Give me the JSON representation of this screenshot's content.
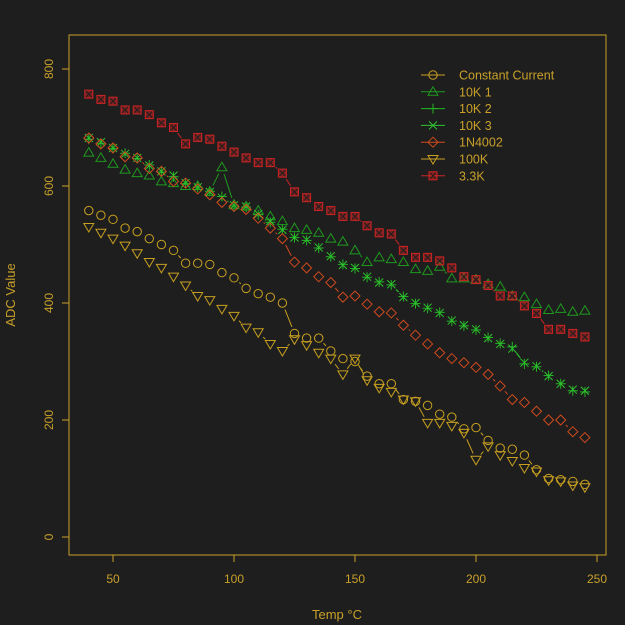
{
  "chart_data": {
    "type": "scatter",
    "xlabel": "Temp °C",
    "ylabel": "ADC Value",
    "xlim": [
      32,
      253
    ],
    "ylim": [
      -30,
      860
    ],
    "xticks": [
      50,
      100,
      150,
      200,
      250
    ],
    "yticks": [
      0,
      200,
      400,
      600,
      800
    ],
    "grid": false,
    "legend_position": "top-right",
    "colors": {
      "background": "#1e1e1e",
      "axis": "#c8a02a"
    },
    "x": [
      40,
      45,
      50,
      55,
      60,
      65,
      70,
      75,
      80,
      85,
      90,
      95,
      100,
      105,
      110,
      115,
      120,
      125,
      130,
      135,
      140,
      145,
      150,
      155,
      160,
      165,
      170,
      175,
      180,
      185,
      190,
      195,
      200,
      205,
      210,
      215,
      220,
      225,
      230,
      235,
      240,
      245
    ],
    "series": [
      {
        "name": "Constant Current",
        "marker": "circle",
        "color": "#c8a020",
        "values": [
          558,
          550,
          543,
          528,
          522,
          510,
          500,
          490,
          468,
          468,
          466,
          452,
          443,
          425,
          416,
          410,
          400,
          348,
          340,
          340,
          318,
          305,
          300,
          275,
          262,
          262,
          235,
          232,
          225,
          210,
          205,
          185,
          187,
          165,
          152,
          150,
          140,
          115,
          100,
          98,
          95,
          90
        ]
      },
      {
        "name": "10K 1",
        "marker": "triangle-up",
        "color": "#1f9a1f",
        "values": [
          657,
          648,
          638,
          628,
          622,
          618,
          608,
          605,
          600,
          600,
          590,
          632,
          568,
          565,
          558,
          548,
          540,
          528,
          525,
          520,
          510,
          505,
          490,
          470,
          478,
          475,
          470,
          458,
          455,
          462,
          442,
          442,
          440,
          432,
          428,
          412,
          410,
          398,
          388,
          390,
          385,
          387
        ]
      },
      {
        "name": "10K 2",
        "marker": "plus",
        "color": "#22b422",
        "values": [
          680,
          673,
          664,
          656,
          647,
          636,
          624,
          616,
          604,
          598,
          591,
          582,
          566,
          564,
          551,
          538,
          526,
          512,
          507,
          494,
          479,
          466,
          459,
          444,
          436,
          431,
          411,
          399,
          391,
          384,
          369,
          361,
          354,
          341,
          331,
          325,
          296,
          291,
          276,
          262,
          250,
          248
        ]
      },
      {
        "name": "10K 3",
        "marker": "cross",
        "color": "#2ec42e",
        "values": [
          682,
          675,
          665,
          655,
          648,
          635,
          625,
          618,
          605,
          598,
          590,
          580,
          567,
          565,
          552,
          540,
          525,
          512,
          508,
          495,
          480,
          465,
          460,
          445,
          435,
          432,
          410,
          400,
          392,
          383,
          370,
          362,
          355,
          340,
          330,
          322,
          298,
          292,
          275,
          262,
          252,
          250
        ]
      },
      {
        "name": "1N4002",
        "marker": "diamond",
        "color": "#d04a1e",
        "values": [
          682,
          672,
          665,
          650,
          648,
          630,
          625,
          608,
          605,
          595,
          585,
          572,
          565,
          560,
          545,
          528,
          510,
          470,
          460,
          445,
          435,
          410,
          412,
          398,
          385,
          383,
          362,
          345,
          330,
          315,
          305,
          298,
          290,
          278,
          258,
          235,
          230,
          215,
          200,
          200,
          180,
          170
        ]
      },
      {
        "name": "100K",
        "marker": "triangle-down",
        "color": "#c8a020",
        "values": [
          530,
          520,
          510,
          498,
          485,
          470,
          460,
          445,
          430,
          412,
          405,
          390,
          378,
          358,
          350,
          330,
          318,
          338,
          328,
          315,
          305,
          278,
          305,
          268,
          255,
          248,
          235,
          232,
          195,
          195,
          190,
          178,
          132,
          155,
          140,
          130,
          118,
          112,
          97,
          95,
          88,
          85
        ]
      },
      {
        "name": "3.3K",
        "marker": "square-x",
        "color": "#cc2424",
        "values": [
          757,
          748,
          745,
          730,
          730,
          722,
          708,
          700,
          672,
          683,
          680,
          668,
          658,
          648,
          640,
          640,
          622,
          590,
          580,
          565,
          558,
          548,
          548,
          532,
          520,
          518,
          490,
          478,
          478,
          472,
          460,
          445,
          440,
          430,
          412,
          412,
          395,
          382,
          355,
          355,
          348,
          342
        ]
      }
    ]
  }
}
